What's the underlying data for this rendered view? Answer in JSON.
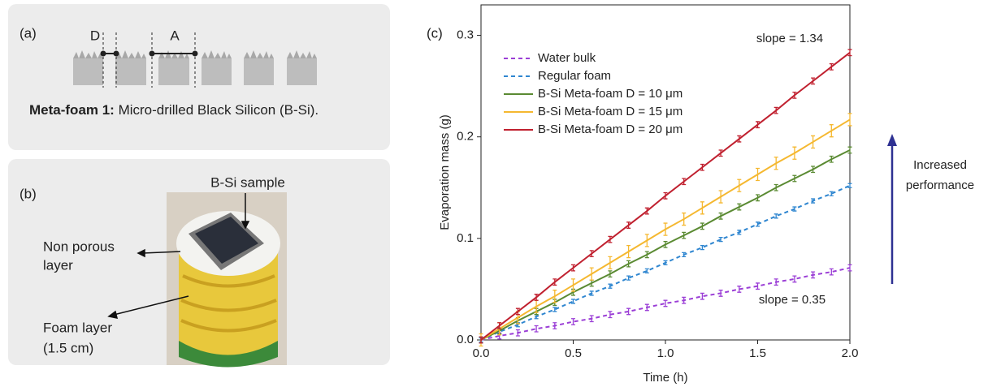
{
  "panel_a": {
    "label": "(a)",
    "dims": [
      "D",
      "A"
    ],
    "caption_bold": "Meta-foam 1:",
    "caption": " Micro-drilled Black Silicon (B-Si)."
  },
  "panel_b": {
    "label": "(b)",
    "sample": "B-Si sample",
    "non_porous": [
      "Non porous",
      "layer"
    ],
    "foam": [
      "Foam layer",
      "(1.5 cm)"
    ]
  },
  "chart_data": {
    "type": "line",
    "panel_label": "(c)",
    "x_label": "Time (h)",
    "y_label": "Evaporation mass (g)",
    "x": [
      0,
      0.1,
      0.2,
      0.3,
      0.4,
      0.5,
      0.6,
      0.7,
      0.8,
      0.9,
      1.0,
      1.1,
      1.2,
      1.3,
      1.4,
      1.5,
      1.6,
      1.7,
      1.8,
      1.9,
      2.0
    ],
    "series": [
      {
        "name": "Water bulk",
        "color": "#9b3fd6",
        "dashed": true,
        "error": 0.003,
        "values": [
          0,
          0.004,
          0.007,
          0.011,
          0.014,
          0.018,
          0.021,
          0.025,
          0.028,
          0.032,
          0.036,
          0.039,
          0.043,
          0.046,
          0.05,
          0.053,
          0.057,
          0.06,
          0.064,
          0.067,
          0.071
        ]
      },
      {
        "name": "Regular foam",
        "color": "#2f86d0",
        "dashed": true,
        "error": 0.002,
        "values": [
          0,
          0.008,
          0.015,
          0.023,
          0.03,
          0.038,
          0.046,
          0.053,
          0.061,
          0.068,
          0.076,
          0.084,
          0.091,
          0.099,
          0.106,
          0.114,
          0.122,
          0.129,
          0.137,
          0.144,
          0.152
        ]
      },
      {
        "name": "B-Si Meta-foam D = 10 μm",
        "color": "#5a8a32",
        "dashed": false,
        "error": 0.003,
        "values": [
          0,
          0.009,
          0.019,
          0.028,
          0.037,
          0.047,
          0.056,
          0.065,
          0.075,
          0.084,
          0.094,
          0.103,
          0.112,
          0.122,
          0.131,
          0.14,
          0.15,
          0.159,
          0.168,
          0.178,
          0.187
        ]
      },
      {
        "name": "B-Si Meta-foam D = 15 μm",
        "color": "#f5b830",
        "dashed": false,
        "error": 0.006,
        "values": [
          0,
          0.011,
          0.022,
          0.033,
          0.043,
          0.054,
          0.065,
          0.076,
          0.087,
          0.098,
          0.109,
          0.119,
          0.13,
          0.141,
          0.152,
          0.163,
          0.174,
          0.184,
          0.195,
          0.206,
          0.217
        ]
      },
      {
        "name": "B-Si Meta-foam D = 20 μm",
        "color": "#c0202f",
        "dashed": false,
        "error": 0.003,
        "values": [
          0,
          0.014,
          0.028,
          0.042,
          0.057,
          0.071,
          0.085,
          0.099,
          0.113,
          0.127,
          0.142,
          0.156,
          0.17,
          0.184,
          0.198,
          0.212,
          0.226,
          0.241,
          0.255,
          0.269,
          0.283
        ]
      }
    ],
    "xlim": [
      0,
      2
    ],
    "xticks": [
      {
        "value": 0,
        "label": "0.0"
      },
      0.5,
      {
        "value": 1,
        "label": "1.0"
      },
      1.5,
      {
        "value": 2,
        "label": "2.0"
      }
    ],
    "ylim": [
      0,
      0.33
    ],
    "yticks": [
      {
        "value": 0,
        "label": "0.0"
      },
      0.1,
      0.2,
      0.3
    ],
    "legend": "upper left",
    "annotations": [
      "slope = 1.34",
      "slope = 0.35"
    ],
    "arrow_text": [
      "Increased",
      "performance"
    ],
    "arrow_color": "#2e3192"
  }
}
